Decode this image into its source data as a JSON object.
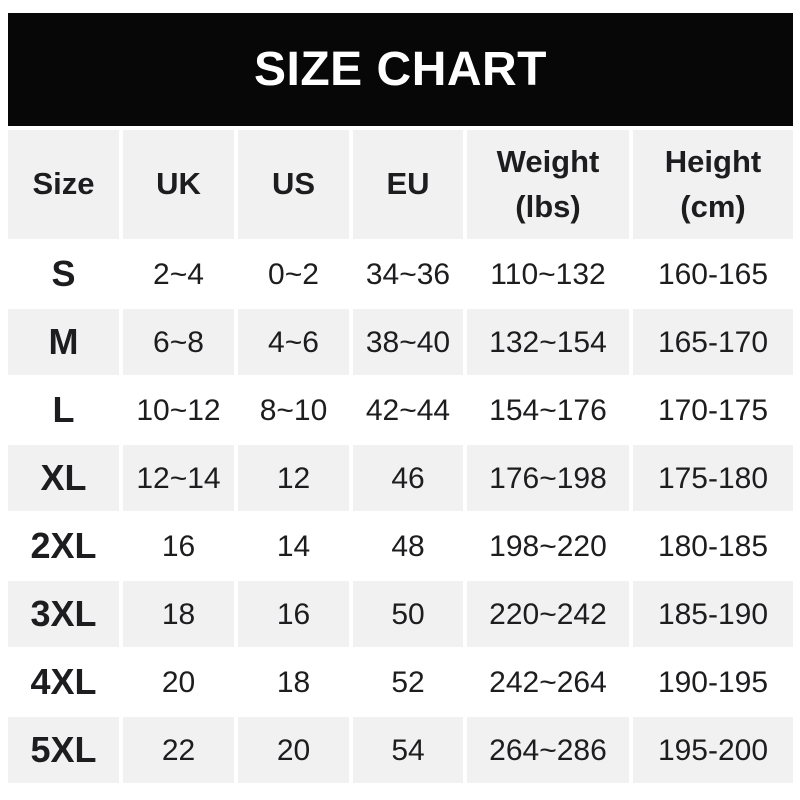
{
  "title": "SIZE CHART",
  "colors": {
    "banner_bg": "#070707",
    "banner_text": "#ffffff",
    "row_shaded_bg": "#f1f1f2",
    "row_plain_bg": "#ffffff",
    "text": "#1d1d1f"
  },
  "table": {
    "headers": [
      {
        "label": "Size",
        "sub": ""
      },
      {
        "label": "UK",
        "sub": ""
      },
      {
        "label": "US",
        "sub": ""
      },
      {
        "label": "EU",
        "sub": ""
      },
      {
        "label": "Weight",
        "sub": "(lbs)"
      },
      {
        "label": "Height",
        "sub": "(cm)"
      }
    ]
  },
  "chart_data": {
    "type": "table",
    "title": "SIZE CHART",
    "columns": [
      "Size",
      "UK",
      "US",
      "EU",
      "Weight (lbs)",
      "Height (cm)"
    ],
    "rows": [
      [
        "S",
        "2~4",
        "0~2",
        "34~36",
        "110~132",
        "160-165"
      ],
      [
        "M",
        "6~8",
        "4~6",
        "38~40",
        "132~154",
        "165-170"
      ],
      [
        "L",
        "10~12",
        "8~10",
        "42~44",
        "154~176",
        "170-175"
      ],
      [
        "XL",
        "12~14",
        "12",
        "46",
        "176~198",
        "175-180"
      ],
      [
        "2XL",
        "16",
        "14",
        "48",
        "198~220",
        "180-185"
      ],
      [
        "3XL",
        "18",
        "16",
        "50",
        "220~242",
        "185-190"
      ],
      [
        "4XL",
        "20",
        "18",
        "52",
        "242~264",
        "190-195"
      ],
      [
        "5XL",
        "22",
        "20",
        "54",
        "264~286",
        "195-200"
      ]
    ]
  }
}
